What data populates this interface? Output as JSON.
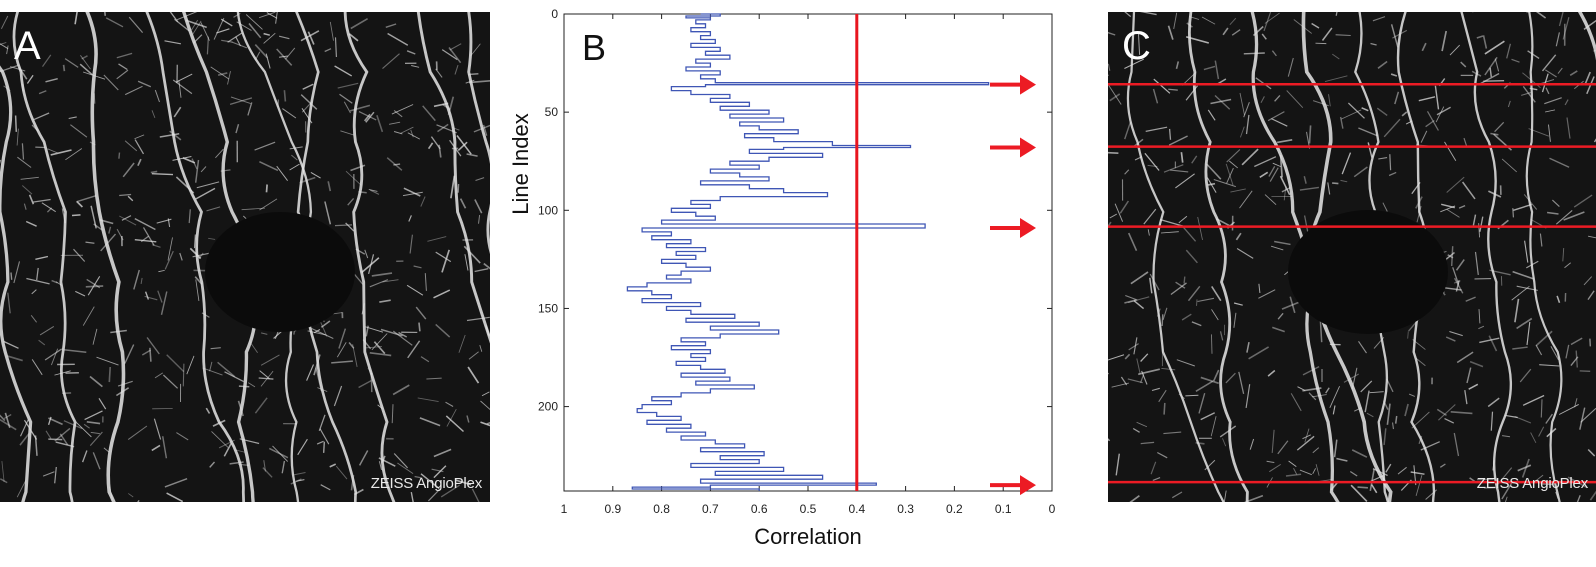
{
  "panels": {
    "a": {
      "letter": "A",
      "watermark": "ZEISS AngioPlex"
    },
    "b": {
      "letter": "B"
    },
    "c": {
      "letter": "C",
      "watermark": "ZEISS AngioPlex"
    }
  },
  "colors": {
    "trace": "#3f56b5",
    "threshold": "#e8151f",
    "marker": "#ec1b24",
    "vessel": "#e6e6e6",
    "background": "#141414"
  },
  "chart_data": {
    "type": "line",
    "xlabel": "Correlation",
    "ylabel": "Line Index",
    "xlim": [
      1,
      0
    ],
    "ylim": [
      0,
      243
    ],
    "x_reversed": true,
    "y_reversed": true,
    "x_ticks": [
      "1",
      "0.9",
      "0.8",
      "0.7",
      "0.6",
      "0.5",
      "0.4",
      "0.3",
      "0.2",
      "0.1",
      "0"
    ],
    "x_tick_values": [
      1,
      0.9,
      0.8,
      0.7,
      0.6,
      0.5,
      0.4,
      0.3,
      0.2,
      0.1,
      0
    ],
    "y_ticks": [
      "0",
      "50",
      "100",
      "150",
      "200"
    ],
    "y_tick_values": [
      0,
      50,
      100,
      150,
      200
    ],
    "threshold_x": 0.4,
    "arrow_rows": [
      36,
      68,
      109,
      240
    ],
    "series": [
      {
        "values": [
          [
            0.72,
            0
          ],
          [
            0.68,
            1
          ],
          [
            0.75,
            2
          ],
          [
            0.7,
            3
          ],
          [
            0.73,
            5
          ],
          [
            0.71,
            7
          ],
          [
            0.74,
            9
          ],
          [
            0.7,
            11
          ],
          [
            0.72,
            13
          ],
          [
            0.69,
            15
          ],
          [
            0.74,
            17
          ],
          [
            0.68,
            19
          ],
          [
            0.71,
            21
          ],
          [
            0.66,
            23
          ],
          [
            0.73,
            25
          ],
          [
            0.7,
            27
          ],
          [
            0.75,
            29
          ],
          [
            0.68,
            31
          ],
          [
            0.72,
            33
          ],
          [
            0.69,
            35
          ],
          [
            0.13,
            36
          ],
          [
            0.71,
            37
          ],
          [
            0.78,
            39
          ],
          [
            0.74,
            41
          ],
          [
            0.66,
            43
          ],
          [
            0.7,
            45
          ],
          [
            0.62,
            47
          ],
          [
            0.68,
            49
          ],
          [
            0.58,
            51
          ],
          [
            0.66,
            53
          ],
          [
            0.55,
            55
          ],
          [
            0.64,
            57
          ],
          [
            0.6,
            59
          ],
          [
            0.52,
            61
          ],
          [
            0.63,
            63
          ],
          [
            0.57,
            65
          ],
          [
            0.45,
            67
          ],
          [
            0.29,
            68
          ],
          [
            0.55,
            69
          ],
          [
            0.62,
            71
          ],
          [
            0.47,
            73
          ],
          [
            0.58,
            75
          ],
          [
            0.66,
            77
          ],
          [
            0.6,
            79
          ],
          [
            0.7,
            81
          ],
          [
            0.64,
            83
          ],
          [
            0.58,
            85
          ],
          [
            0.72,
            87
          ],
          [
            0.62,
            89
          ],
          [
            0.55,
            91
          ],
          [
            0.46,
            93
          ],
          [
            0.68,
            95
          ],
          [
            0.74,
            97
          ],
          [
            0.7,
            99
          ],
          [
            0.78,
            101
          ],
          [
            0.73,
            103
          ],
          [
            0.69,
            105
          ],
          [
            0.8,
            107
          ],
          [
            0.26,
            109
          ],
          [
            0.84,
            111
          ],
          [
            0.78,
            113
          ],
          [
            0.82,
            115
          ],
          [
            0.74,
            117
          ],
          [
            0.79,
            119
          ],
          [
            0.71,
            121
          ],
          [
            0.77,
            123
          ],
          [
            0.73,
            125
          ],
          [
            0.8,
            127
          ],
          [
            0.75,
            129
          ],
          [
            0.7,
            131
          ],
          [
            0.76,
            133
          ],
          [
            0.79,
            135
          ],
          [
            0.74,
            137
          ],
          [
            0.83,
            139
          ],
          [
            0.87,
            141
          ],
          [
            0.82,
            143
          ],
          [
            0.78,
            145
          ],
          [
            0.84,
            147
          ],
          [
            0.72,
            149
          ],
          [
            0.79,
            151
          ],
          [
            0.74,
            153
          ],
          [
            0.65,
            155
          ],
          [
            0.75,
            157
          ],
          [
            0.6,
            159
          ],
          [
            0.7,
            161
          ],
          [
            0.56,
            163
          ],
          [
            0.68,
            165
          ],
          [
            0.76,
            167
          ],
          [
            0.71,
            169
          ],
          [
            0.78,
            171
          ],
          [
            0.7,
            173
          ],
          [
            0.74,
            175
          ],
          [
            0.71,
            177
          ],
          [
            0.77,
            179
          ],
          [
            0.72,
            181
          ],
          [
            0.67,
            183
          ],
          [
            0.76,
            185
          ],
          [
            0.66,
            187
          ],
          [
            0.73,
            189
          ],
          [
            0.61,
            191
          ],
          [
            0.7,
            193
          ],
          [
            0.76,
            195
          ],
          [
            0.82,
            197
          ],
          [
            0.78,
            199
          ],
          [
            0.84,
            201
          ],
          [
            0.85,
            203
          ],
          [
            0.81,
            205
          ],
          [
            0.76,
            207
          ],
          [
            0.83,
            209
          ],
          [
            0.74,
            211
          ],
          [
            0.79,
            213
          ],
          [
            0.71,
            215
          ],
          [
            0.76,
            217
          ],
          [
            0.69,
            219
          ],
          [
            0.63,
            221
          ],
          [
            0.72,
            223
          ],
          [
            0.59,
            225
          ],
          [
            0.68,
            227
          ],
          [
            0.6,
            229
          ],
          [
            0.74,
            231
          ],
          [
            0.55,
            233
          ],
          [
            0.69,
            235
          ],
          [
            0.47,
            237
          ],
          [
            0.72,
            239
          ],
          [
            0.36,
            240
          ],
          [
            0.7,
            241
          ],
          [
            0.86,
            242
          ],
          [
            0.6,
            243
          ]
        ]
      }
    ]
  }
}
